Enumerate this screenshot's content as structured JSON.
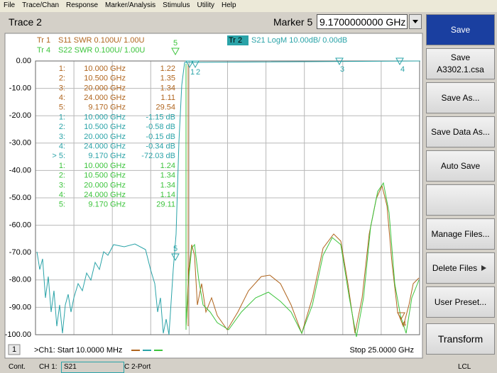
{
  "menu": [
    "File",
    "Trace/Chan",
    "Response",
    "Marker/Analysis",
    "Stimulus",
    "Utility",
    "Help"
  ],
  "toolbar": {
    "title": "Trace 2",
    "marker_label": "Marker 5",
    "marker_value": "9.1700000000 GHz"
  },
  "trace_legend": {
    "tr1": {
      "tag": "Tr 1",
      "text": "S11 SWR 0.100U/  1.00U"
    },
    "tr4": {
      "tag": "Tr 4",
      "text": "S22 SWR 0.100U/  1.00U"
    },
    "tr2": {
      "tag": "Tr 2",
      "text": "S21 LogM 10.00dB/  0.00dB"
    }
  },
  "y_axis": [
    "0.00",
    "-10.00",
    "-20.00",
    "-30.00",
    "-40.00",
    "-50.00",
    "-60.00",
    "-70.00",
    "-80.00",
    "-90.00",
    "-100.00"
  ],
  "marker_table": [
    {
      "rows": [
        [
          "1:",
          "10.000 GHz",
          "1.22"
        ],
        [
          "2:",
          "10.500 GHz",
          "1.35"
        ],
        [
          "3:",
          "20.000 GHz",
          "1.34"
        ],
        [
          "4:",
          "24.000 GHz",
          "1.11"
        ],
        [
          "5:",
          "9.170 GHz",
          "29.54"
        ]
      ]
    },
    {
      "rows": [
        [
          "1:",
          "10.000 GHz",
          "-1.15 dB"
        ],
        [
          "2:",
          "10.500 GHz",
          "-0.58 dB"
        ],
        [
          "3:",
          "20.000 GHz",
          "-0.15 dB"
        ],
        [
          "4:",
          "24.000 GHz",
          "-0.34 dB"
        ],
        [
          "> 5:",
          "9.170 GHz",
          "-72.03 dB"
        ]
      ]
    },
    {
      "rows": [
        [
          "1:",
          "10.000 GHz",
          "1.24"
        ],
        [
          "2:",
          "10.500 GHz",
          "1.34"
        ],
        [
          "3:",
          "20.000 GHz",
          "1.34"
        ],
        [
          "4:",
          "24.000 GHz",
          "1.14"
        ],
        [
          "5:",
          "9.170 GHz",
          "29.11"
        ]
      ]
    }
  ],
  "marker_flags": [
    "5",
    "1",
    "2",
    "3",
    "4",
    "5",
    "4"
  ],
  "footer": {
    "channel_num": "1",
    "start": ">Ch1: Start  10.0000 MHz",
    "stop": "Stop  25.0000 GHz"
  },
  "side_buttons": [
    [
      "Save"
    ],
    [
      "Save",
      "A3302.1.csa"
    ],
    [
      "Save As..."
    ],
    [
      "Save Data As..."
    ],
    [
      "Auto Save"
    ],
    [],
    [
      "Manage Files..."
    ],
    [
      "Delete Files"
    ],
    [
      "User Preset..."
    ],
    [
      "Transform"
    ]
  ],
  "status_bar": {
    "mode": "Cont.",
    "channel": "CH 1:",
    "param": "S21",
    "cal": "C  2-Port",
    "ref": "LCL"
  }
}
